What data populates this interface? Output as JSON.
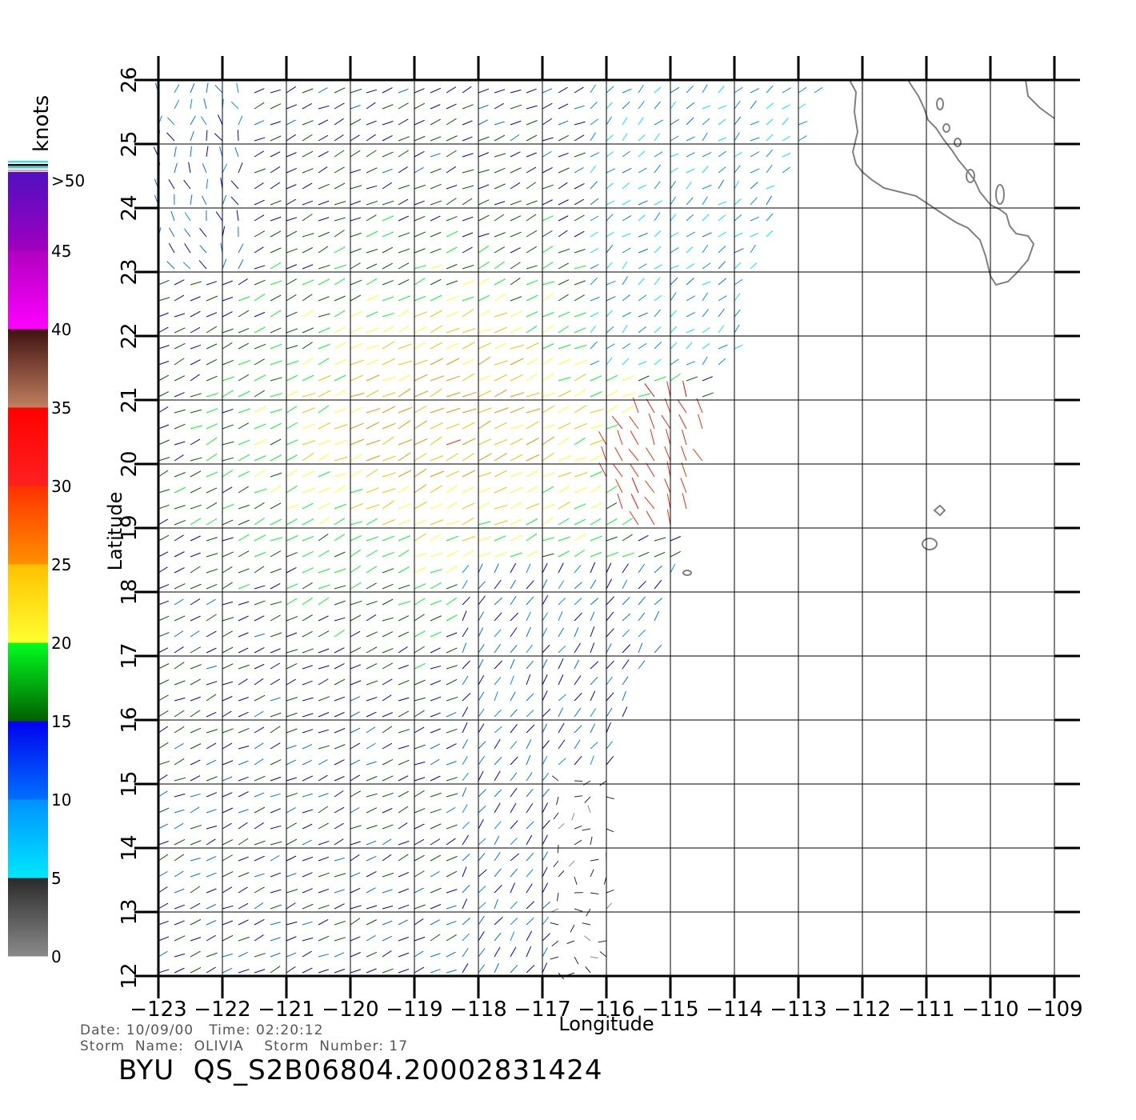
{
  "map": {
    "axis_x_label": "Longitude",
    "axis_y_label": "Latitude",
    "lon_ticks": [
      "-123",
      "-122",
      "-121",
      "-120",
      "-119",
      "-118",
      "-117",
      "-116",
      "-115",
      "-114",
      "-113",
      "-112",
      "-111",
      "-110",
      "-109"
    ],
    "lat_ticks": [
      "12",
      "13",
      "14",
      "15",
      "16",
      "17",
      "18",
      "19",
      "20",
      "21",
      "22",
      "23",
      "24",
      "25",
      "26"
    ],
    "lon_range": [
      -123,
      -109
    ],
    "lat_range": [
      12,
      26
    ],
    "grid": true,
    "land_color": "#808080"
  },
  "legend": {
    "title": "knots",
    "labels": [
      ">50",
      "45",
      "40",
      "35",
      "30",
      "25",
      "20",
      "15",
      "10",
      "5",
      "0"
    ],
    "bands": [
      {
        "from": 0,
        "to": 5,
        "top": "#2a2a2a",
        "bottom": "#8a8a8a"
      },
      {
        "from": 5,
        "to": 10,
        "top": "#0090ff",
        "bottom": "#00e8ff"
      },
      {
        "from": 10,
        "to": 15,
        "top": "#0000ee",
        "bottom": "#0070ff"
      },
      {
        "from": 15,
        "to": 20,
        "top": "#00ff20",
        "bottom": "#006000"
      },
      {
        "from": 20,
        "to": 25,
        "top": "#ffc000",
        "bottom": "#ffff30"
      },
      {
        "from": 25,
        "to": 30,
        "top": "#ff3000",
        "bottom": "#ff9000"
      },
      {
        "from": 30,
        "to": 35,
        "top": "#ff0000",
        "bottom": "#ff2020"
      },
      {
        "from": 35,
        "to": 40,
        "top": "#401010",
        "bottom": "#c08060"
      },
      {
        "from": 40,
        "to": 45,
        "top": "#b000c0",
        "bottom": "#ff00ff"
      },
      {
        "from": 45,
        "to": 50,
        "top": "#5010c0",
        "bottom": "#a000c0"
      }
    ]
  },
  "footer": {
    "date_line": "Date: 10/09/00   Time: 02:20:12",
    "storm_line": "Storm  Name:  OLIVIA    Storm  Number: 17",
    "product_id": "BYU  QS_S2B06804.20002831424"
  }
}
